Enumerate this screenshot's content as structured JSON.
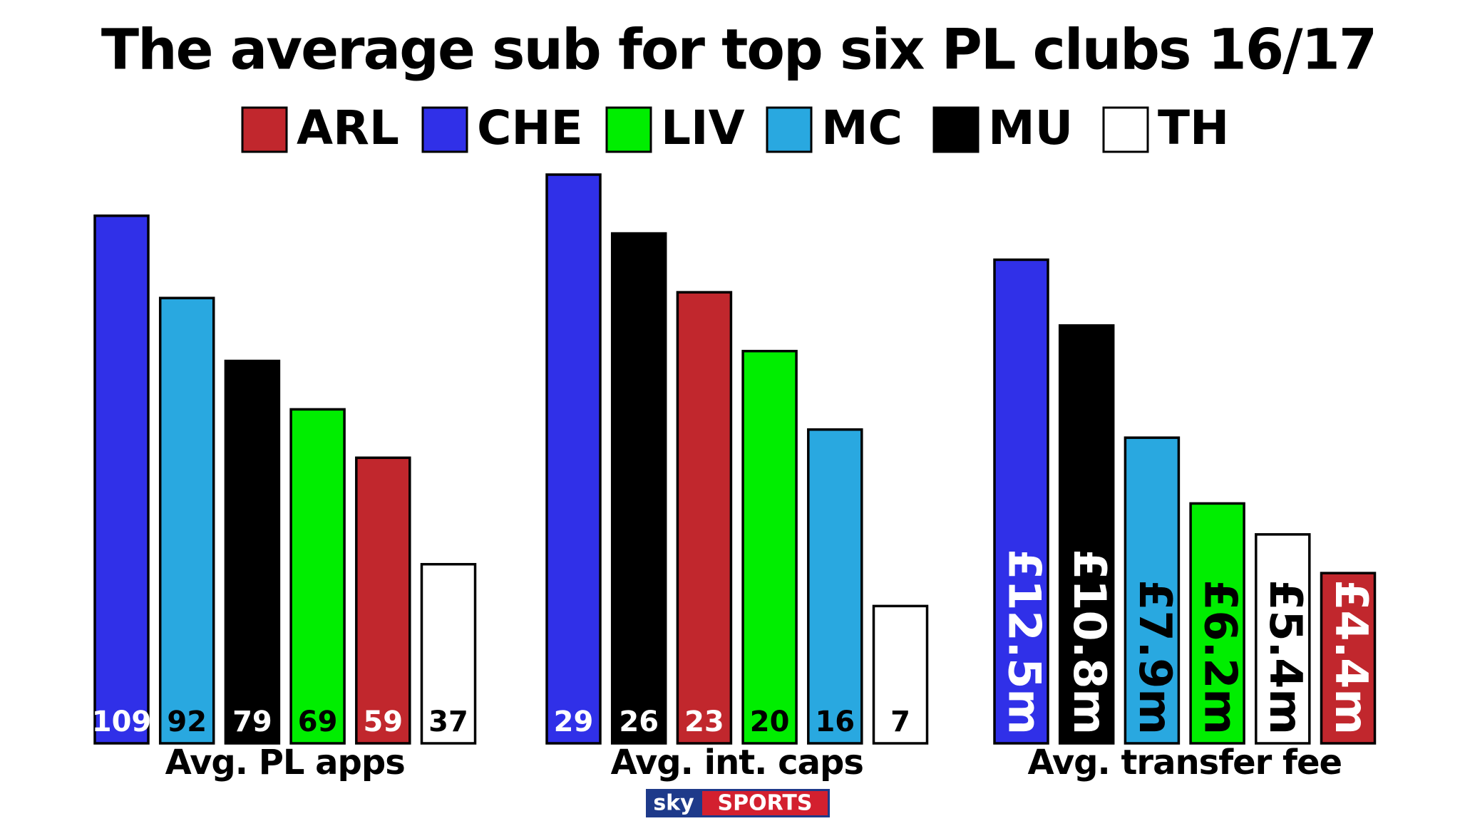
{
  "title": "The average sub for top six PL clubs 16/17",
  "legend": [
    {
      "name": "ARL",
      "color": "#c1272d"
    },
    {
      "name": "CHE",
      "color": "#3030e8"
    },
    {
      "name": "LIV",
      "color": "#00ee00"
    },
    {
      "name": "MC",
      "color": "#29a8e0"
    },
    {
      "name": "MU",
      "color": "#000000"
    },
    {
      "name": "TH",
      "color": "#ffffff"
    }
  ],
  "chart_data": [
    {
      "type": "bar",
      "xlabel": "Avg. PL apps",
      "values": [
        109,
        92,
        79,
        69,
        59,
        37
      ],
      "colors": [
        "#3030e8",
        "#29a8e0",
        "#000000",
        "#00ee00",
        "#c1272d",
        "#ffffff"
      ],
      "ylim": [
        0,
        117.5
      ]
    },
    {
      "type": "bar",
      "xlabel": "Avg. int. caps",
      "values": [
        29,
        26,
        23,
        20,
        16,
        7
      ],
      "colors": [
        "#3030e8",
        "#000000",
        "#c1272d",
        "#00ee00",
        "#29a8e0",
        "#ffffff"
      ],
      "ylim": [
        0,
        29
      ]
    },
    {
      "type": "bar",
      "xlabel": "Avg. transfer fee",
      "values": [
        12.5,
        10.8,
        7.9,
        6.2,
        5.4,
        4.4
      ],
      "value_labels": [
        "£12.5m",
        "£10.8m",
        "£7.9m",
        "£6.2m",
        "£5.4m",
        "£4.4m"
      ],
      "colors": [
        "#3030e8",
        "#000000",
        "#29a8e0",
        "#00ee00",
        "#ffffff",
        "#c1272d"
      ],
      "ylim": [
        0,
        14.7
      ]
    }
  ],
  "logo": {
    "sky": "sky",
    "sports": "SPORTS"
  }
}
